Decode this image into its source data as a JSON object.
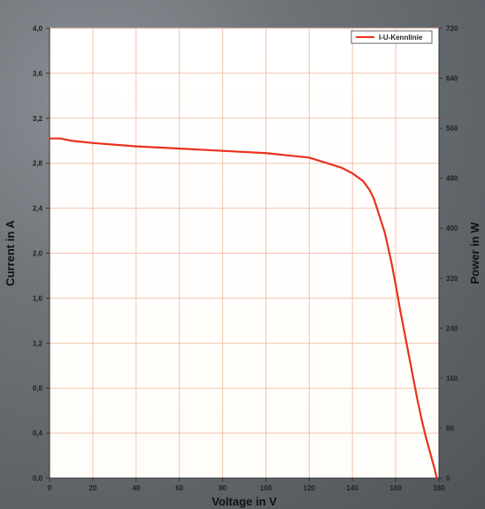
{
  "chart_data": {
    "type": "line",
    "title": "",
    "xlabel": "Voltage in V",
    "ylabel": "Current in A",
    "y2label": "Power in W",
    "xlim": [
      0,
      180
    ],
    "ylim": [
      0,
      4.0
    ],
    "y2lim": [
      0,
      720
    ],
    "x_ticks": [
      "0",
      "20",
      "40",
      "60",
      "80",
      "100",
      "120",
      "140",
      "160",
      "180"
    ],
    "y_ticks": [
      "0,0",
      "0,4",
      "0,8",
      "1,2",
      "1,6",
      "2,0",
      "2,4",
      "2,8",
      "3,2",
      "3,6",
      "4,0"
    ],
    "y2_ticks": [
      "0",
      "80",
      "160",
      "240",
      "320",
      "400",
      "480",
      "560",
      "640",
      "720"
    ],
    "grid": true,
    "legend_position": "top-right",
    "series": [
      {
        "name": "I-U-Kennlinie",
        "color": "#e8321e",
        "x": [
          0,
          5,
          10,
          20,
          40,
          60,
          80,
          100,
          110,
          120,
          125,
          130,
          135,
          140,
          145,
          148,
          150,
          152,
          155,
          158,
          160,
          162,
          165,
          168,
          170,
          172,
          174,
          176,
          178,
          179
        ],
        "y": [
          3.02,
          3.02,
          3.0,
          2.98,
          2.95,
          2.93,
          2.91,
          2.89,
          2.87,
          2.85,
          2.82,
          2.79,
          2.76,
          2.71,
          2.64,
          2.56,
          2.48,
          2.36,
          2.18,
          1.92,
          1.72,
          1.5,
          1.2,
          0.9,
          0.7,
          0.52,
          0.36,
          0.22,
          0.08,
          0.0
        ]
      }
    ]
  }
}
